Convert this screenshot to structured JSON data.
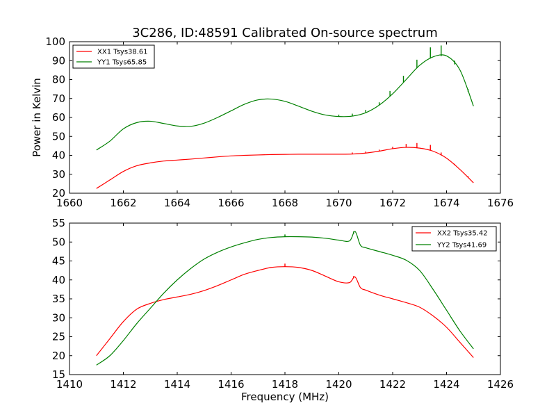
{
  "chart_data": [
    {
      "type": "line",
      "title": "3C286, ID:48591 Calibrated On-source spectrum",
      "xlabel": "",
      "ylabel": "Power in Kelvin",
      "xlim": [
        1660,
        1676
      ],
      "ylim": [
        20,
        100
      ],
      "xticks": [
        1660,
        1662,
        1664,
        1666,
        1668,
        1670,
        1672,
        1674,
        1676
      ],
      "yticks": [
        20,
        30,
        40,
        50,
        60,
        70,
        80,
        90,
        100
      ],
      "grid": false,
      "legend_position": "upper left",
      "series": [
        {
          "name": "XX1 Tsys38.61",
          "color": "#ff0000",
          "x": [
            1661.0,
            1661.5,
            1662.0,
            1662.5,
            1663.0,
            1663.5,
            1664.0,
            1664.5,
            1665.0,
            1665.5,
            1666.0,
            1666.5,
            1667.0,
            1667.5,
            1668.0,
            1668.5,
            1669.0,
            1669.5,
            1670.0,
            1670.5,
            1671.0,
            1671.5,
            1672.0,
            1672.5,
            1673.0,
            1673.5,
            1674.0,
            1674.5,
            1675.0
          ],
          "y": [
            22.5,
            27.0,
            31.5,
            34.5,
            36.0,
            37.0,
            37.5,
            38.0,
            38.6,
            39.2,
            39.7,
            40.0,
            40.2,
            40.4,
            40.5,
            40.6,
            40.6,
            40.6,
            40.6,
            40.7,
            41.2,
            42.2,
            43.5,
            44.2,
            43.8,
            42.2,
            38.5,
            32.5,
            25.5
          ],
          "spikes": [
            {
              "x": 1670.5,
              "y": 41.5
            },
            {
              "x": 1671.0,
              "y": 42.0
            },
            {
              "x": 1671.5,
              "y": 43.0
            },
            {
              "x": 1672.0,
              "y": 44.5
            },
            {
              "x": 1672.5,
              "y": 46.0
            },
            {
              "x": 1672.9,
              "y": 46.5
            },
            {
              "x": 1673.4,
              "y": 45.5
            },
            {
              "x": 1673.8,
              "y": 41.5
            },
            {
              "x": 1674.3,
              "y": 35.5
            },
            {
              "x": 1674.8,
              "y": 29.0
            }
          ]
        },
        {
          "name": "YY1 Tsys65.85",
          "color": "#008000",
          "x": [
            1661.0,
            1661.5,
            1662.0,
            1662.5,
            1663.0,
            1663.5,
            1664.0,
            1664.5,
            1665.0,
            1665.5,
            1666.0,
            1666.5,
            1667.0,
            1667.5,
            1668.0,
            1668.5,
            1669.0,
            1669.5,
            1670.0,
            1670.5,
            1671.0,
            1671.5,
            1672.0,
            1672.5,
            1673.0,
            1673.5,
            1674.0,
            1674.5,
            1675.0
          ],
          "y": [
            42.8,
            47.5,
            54.0,
            57.3,
            58.0,
            56.8,
            55.5,
            55.3,
            57.0,
            60.0,
            63.5,
            67.0,
            69.3,
            69.7,
            68.5,
            66.0,
            63.3,
            61.3,
            60.5,
            60.7,
            62.5,
            66.5,
            72.5,
            80.0,
            87.5,
            92.0,
            92.5,
            85.0,
            66.0
          ],
          "spikes": [
            {
              "x": 1670.0,
              "y": 61.5
            },
            {
              "x": 1670.5,
              "y": 62.0
            },
            {
              "x": 1671.0,
              "y": 64.0
            },
            {
              "x": 1671.5,
              "y": 68.0
            },
            {
              "x": 1671.9,
              "y": 74.0
            },
            {
              "x": 1672.4,
              "y": 82.0
            },
            {
              "x": 1672.9,
              "y": 90.5
            },
            {
              "x": 1673.4,
              "y": 97.0
            },
            {
              "x": 1673.8,
              "y": 98.0
            },
            {
              "x": 1674.3,
              "y": 90.0
            },
            {
              "x": 1674.8,
              "y": 75.0
            }
          ]
        }
      ]
    },
    {
      "type": "line",
      "title": "",
      "xlabel": "Frequency (MHz)",
      "ylabel": "",
      "xlim": [
        1410,
        1426
      ],
      "ylim": [
        15,
        55
      ],
      "xticks": [
        1410,
        1412,
        1414,
        1416,
        1418,
        1420,
        1422,
        1424,
        1426
      ],
      "yticks": [
        15,
        20,
        25,
        30,
        35,
        40,
        45,
        50,
        55
      ],
      "grid": false,
      "legend_position": "upper right",
      "series": [
        {
          "name": "XX2 Tsys35.42",
          "color": "#ff0000",
          "x": [
            1411.0,
            1411.5,
            1412.0,
            1412.5,
            1413.0,
            1413.5,
            1414.0,
            1414.5,
            1415.0,
            1415.5,
            1416.0,
            1416.5,
            1417.0,
            1417.5,
            1418.0,
            1418.5,
            1419.0,
            1419.5,
            1420.0,
            1420.4,
            1420.6,
            1420.8,
            1421.0,
            1421.5,
            1422.0,
            1422.5,
            1423.0,
            1423.5,
            1424.0,
            1424.5,
            1425.0
          ],
          "y": [
            20.0,
            24.5,
            29.0,
            32.3,
            33.8,
            34.8,
            35.5,
            36.2,
            37.2,
            38.5,
            40.0,
            41.5,
            42.5,
            43.3,
            43.5,
            43.3,
            42.5,
            41.0,
            39.5,
            39.3,
            40.8,
            38.0,
            37.3,
            36.0,
            35.0,
            34.0,
            32.8,
            30.5,
            27.5,
            23.5,
            19.5
          ],
          "spikes": [
            {
              "x": 1418.0,
              "y": 44.3
            },
            {
              "x": 1420.55,
              "y": 41.0
            }
          ]
        },
        {
          "name": "YY2 Tsys41.69",
          "color": "#008000",
          "x": [
            1411.0,
            1411.5,
            1412.0,
            1412.5,
            1413.0,
            1413.5,
            1414.0,
            1414.5,
            1415.0,
            1415.5,
            1416.0,
            1416.5,
            1417.0,
            1417.5,
            1418.0,
            1418.5,
            1419.0,
            1419.5,
            1420.0,
            1420.4,
            1420.6,
            1420.8,
            1421.0,
            1421.5,
            1422.0,
            1422.5,
            1423.0,
            1423.5,
            1424.0,
            1424.5,
            1425.0
          ],
          "y": [
            17.5,
            20.0,
            24.0,
            28.5,
            32.5,
            36.5,
            40.0,
            43.0,
            45.5,
            47.3,
            48.7,
            49.8,
            50.7,
            51.2,
            51.4,
            51.4,
            51.3,
            51.0,
            50.5,
            50.3,
            52.8,
            49.2,
            48.5,
            47.5,
            46.5,
            45.2,
            42.5,
            37.5,
            32.0,
            26.5,
            21.8
          ],
          "spikes": [
            {
              "x": 1418.0,
              "y": 52.0
            },
            {
              "x": 1420.55,
              "y": 52.8
            }
          ]
        }
      ]
    }
  ]
}
